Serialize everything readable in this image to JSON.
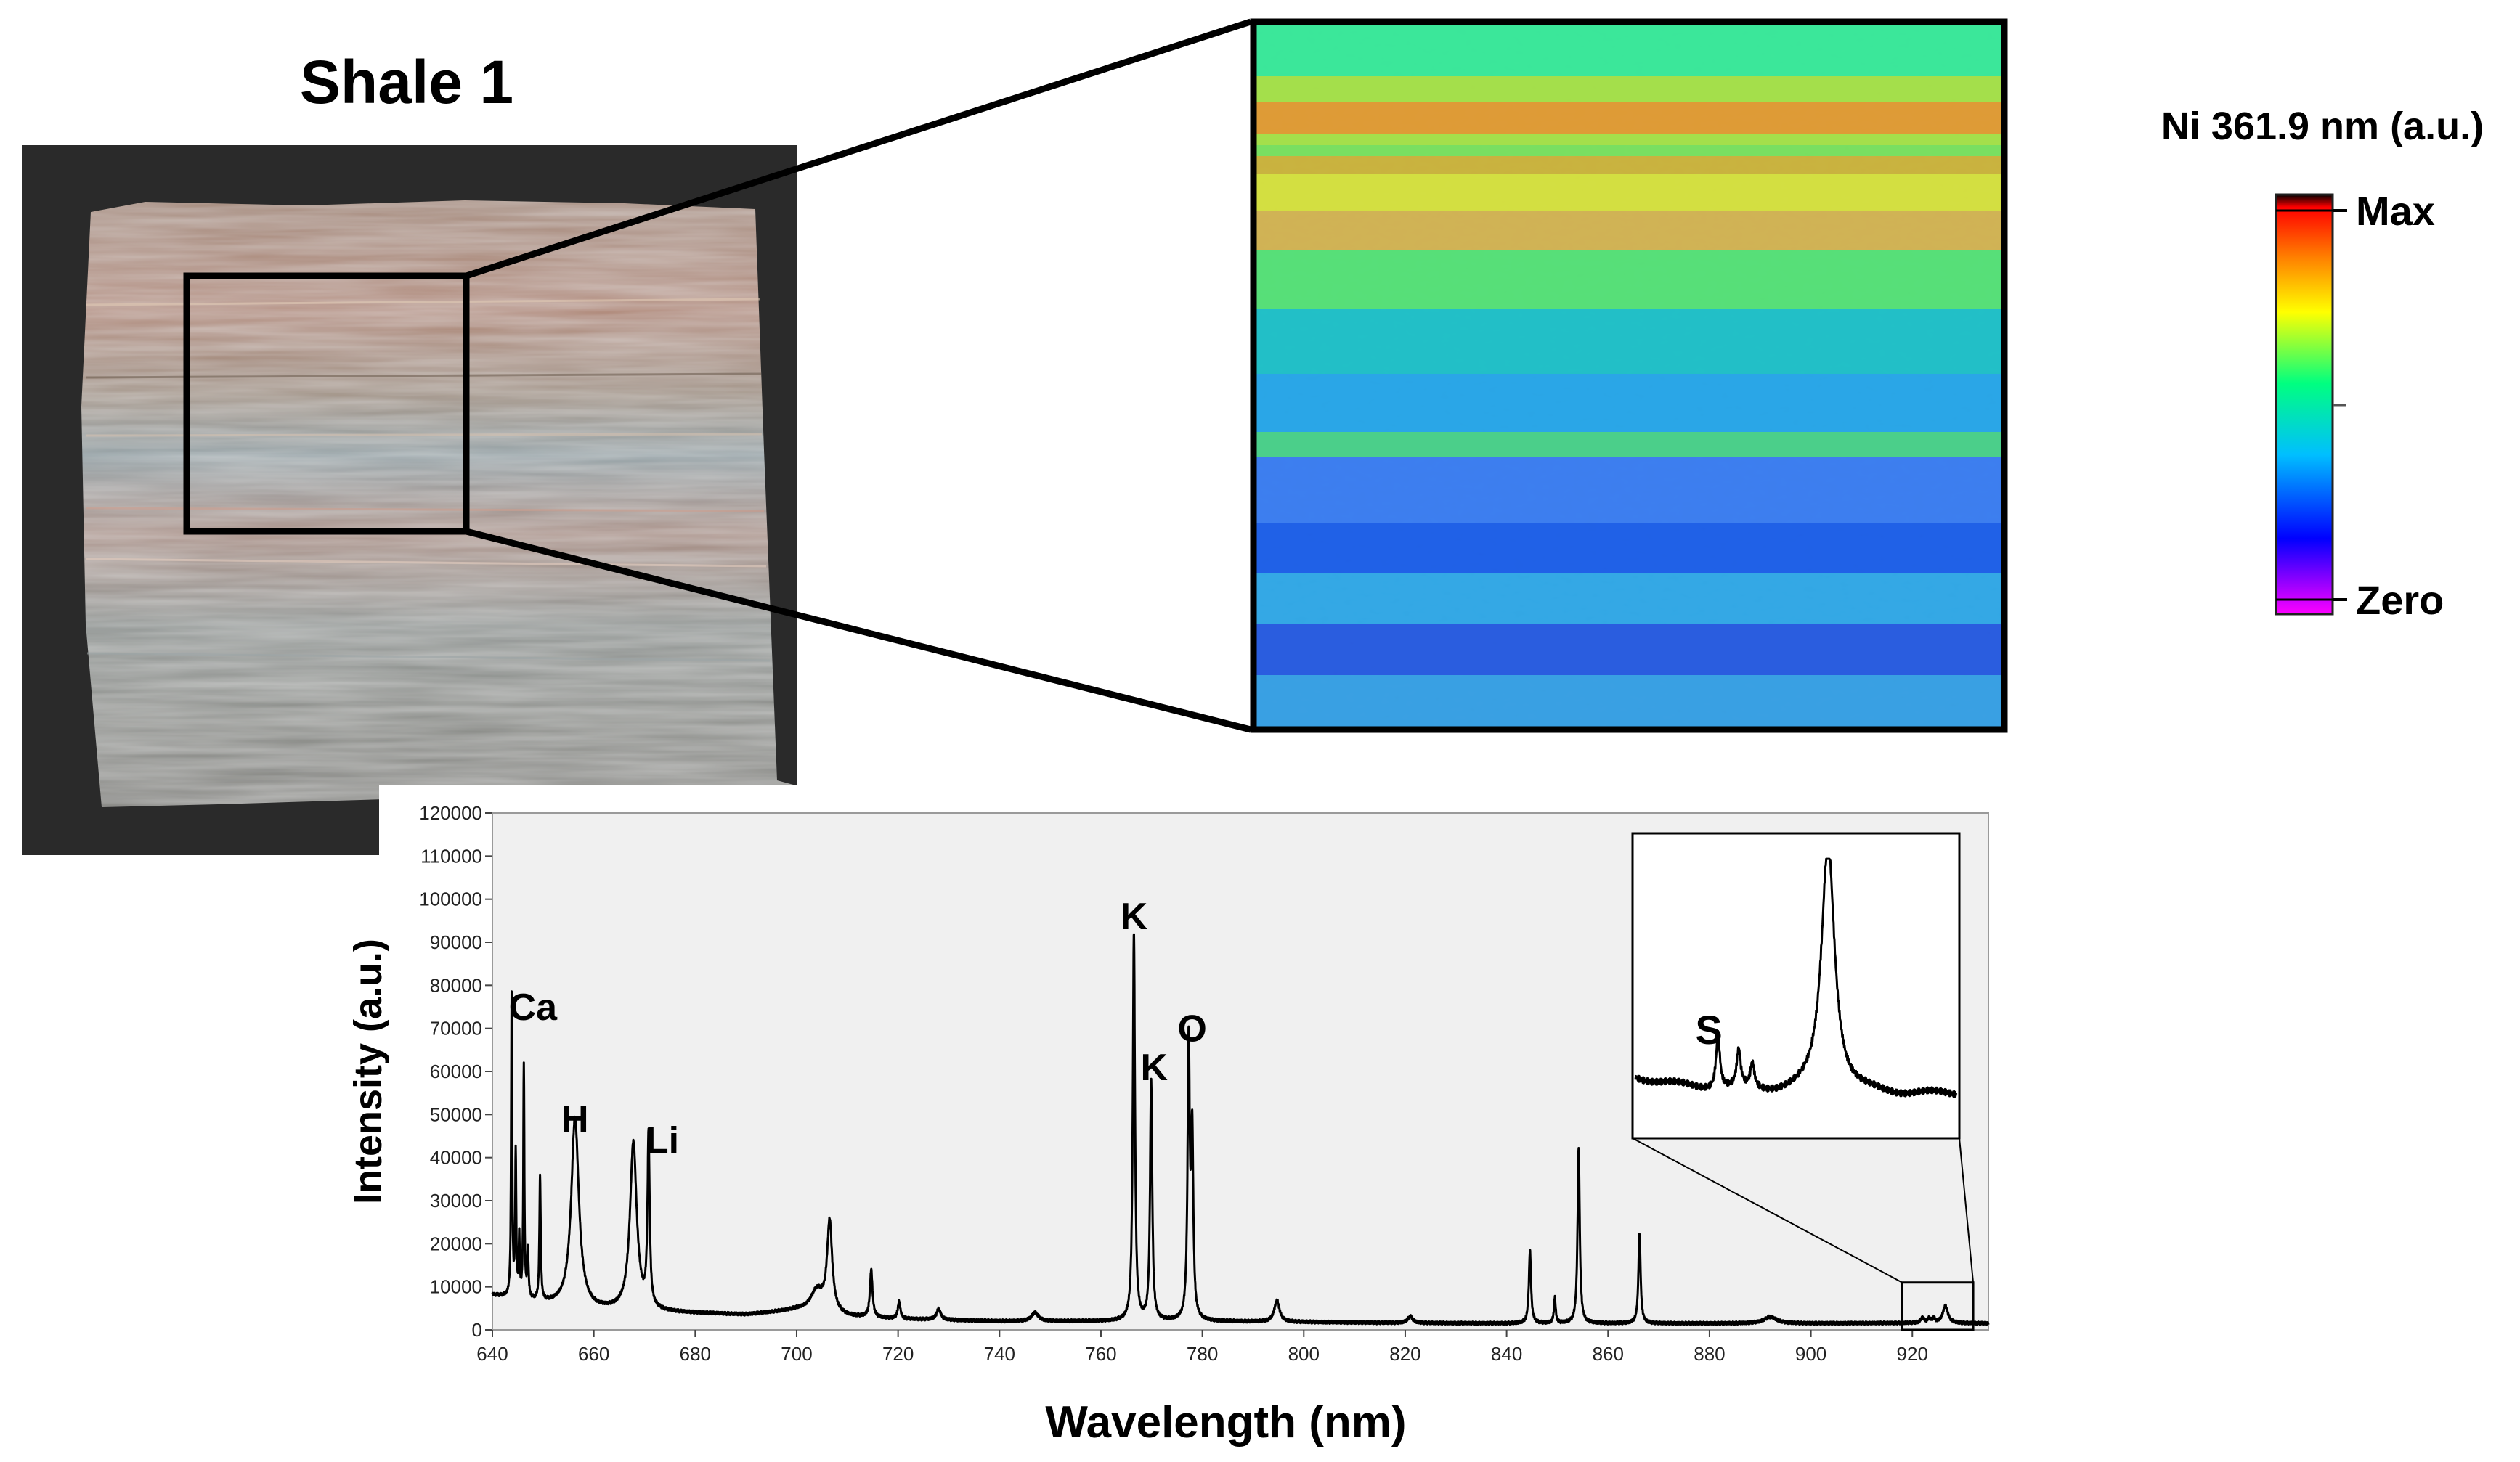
{
  "photo": {
    "title": "Shale 1"
  },
  "colorbar": {
    "title": "Ni 361.9 nm (a.u.)",
    "max_label": "Max",
    "min_label": "Zero",
    "colors": [
      "#ff00ff",
      "#0000ff",
      "#00bfff",
      "#00ff80",
      "#ffff00",
      "#ff8000",
      "#ff0000",
      "#000000"
    ]
  },
  "chart_data": {
    "type": "line",
    "xlabel": "Wavelength (nm)",
    "ylabel": "Intensity (a.u.)",
    "xlim": [
      640,
      935
    ],
    "ylim": [
      0,
      120000
    ],
    "x_ticks": [
      640,
      660,
      680,
      700,
      720,
      740,
      760,
      780,
      800,
      820,
      840,
      860,
      880,
      900,
      920
    ],
    "y_ticks": [
      0,
      10000,
      20000,
      30000,
      40000,
      50000,
      60000,
      70000,
      80000,
      90000,
      100000,
      110000,
      120000
    ],
    "baseline": [
      [
        640,
        8000
      ],
      [
        650,
        6000
      ],
      [
        660,
        4500
      ],
      [
        675,
        4000
      ],
      [
        690,
        3500
      ],
      [
        700,
        4500
      ],
      [
        710,
        3000
      ],
      [
        720,
        2500
      ],
      [
        740,
        2000
      ],
      [
        760,
        2000
      ],
      [
        780,
        2000
      ],
      [
        800,
        1800
      ],
      [
        820,
        1600
      ],
      [
        840,
        1500
      ],
      [
        860,
        1500
      ],
      [
        880,
        1500
      ],
      [
        900,
        1500
      ],
      [
        920,
        1600
      ],
      [
        935,
        1500
      ]
    ],
    "peaks": [
      {
        "x": 643.8,
        "y": 70000,
        "w": 0.12
      },
      {
        "x": 644.6,
        "y": 33000,
        "w": 0.12
      },
      {
        "x": 645.3,
        "y": 14000,
        "w": 0.12
      },
      {
        "x": 646.2,
        "y": 54000,
        "w": 0.12
      },
      {
        "x": 647.0,
        "y": 11000,
        "w": 0.15
      },
      {
        "x": 649.4,
        "y": 29000,
        "w": 0.15
      },
      {
        "x": 656.3,
        "y": 44000,
        "w": 0.9
      },
      {
        "x": 667.8,
        "y": 39000,
        "w": 0.8
      },
      {
        "x": 670.8,
        "y": 40000,
        "w": 0.25
      },
      {
        "x": 704.0,
        "y": 5000,
        "w": 1.5
      },
      {
        "x": 706.5,
        "y": 21000,
        "w": 0.6
      },
      {
        "x": 714.7,
        "y": 11000,
        "w": 0.3
      },
      {
        "x": 720.2,
        "y": 4000,
        "w": 0.3
      },
      {
        "x": 728.0,
        "y": 2500,
        "w": 0.5
      },
      {
        "x": 747.0,
        "y": 2000,
        "w": 0.8
      },
      {
        "x": 766.5,
        "y": 90000,
        "w": 0.25
      },
      {
        "x": 769.9,
        "y": 56000,
        "w": 0.25
      },
      {
        "x": 777.3,
        "y": 64000,
        "w": 0.25
      },
      {
        "x": 778.0,
        "y": 42000,
        "w": 0.25
      },
      {
        "x": 794.7,
        "y": 5000,
        "w": 0.6
      },
      {
        "x": 821.0,
        "y": 1500,
        "w": 0.6
      },
      {
        "x": 844.6,
        "y": 17000,
        "w": 0.25
      },
      {
        "x": 849.5,
        "y": 6000,
        "w": 0.2
      },
      {
        "x": 854.2,
        "y": 41000,
        "w": 0.25
      },
      {
        "x": 866.2,
        "y": 21000,
        "w": 0.25
      },
      {
        "x": 892.0,
        "y": 1500,
        "w": 1.5
      },
      {
        "x": 922.0,
        "y": 1200,
        "w": 0.4
      },
      {
        "x": 923.3,
        "y": 1000,
        "w": 0.3
      },
      {
        "x": 924.2,
        "y": 1000,
        "w": 0.3
      },
      {
        "x": 926.5,
        "y": 4000,
        "w": 0.6
      }
    ],
    "annotations": [
      {
        "text": "Ca",
        "x": 648,
        "y": 72000
      },
      {
        "text": "H",
        "x": 656.3,
        "y": 46000
      },
      {
        "text": "Li",
        "x": 673.5,
        "y": 41000
      },
      {
        "text": "K",
        "x": 766.5,
        "y": 93000
      },
      {
        "text": "K",
        "x": 770.5,
        "y": 58000
      },
      {
        "text": "O",
        "x": 778,
        "y": 67000
      }
    ],
    "inset": {
      "xlim": [
        918,
        932
      ],
      "baseline_fraction": 0.08,
      "label": "S",
      "label_x": 921.2,
      "peaks": [
        {
          "x": 921.6,
          "h": 0.22,
          "w": 0.1
        },
        {
          "x": 922.5,
          "h": 0.15,
          "w": 0.1
        },
        {
          "x": 923.1,
          "h": 0.1,
          "w": 0.1
        },
        {
          "x": 926.4,
          "h": 1.0,
          "w": 0.35
        }
      ]
    }
  }
}
